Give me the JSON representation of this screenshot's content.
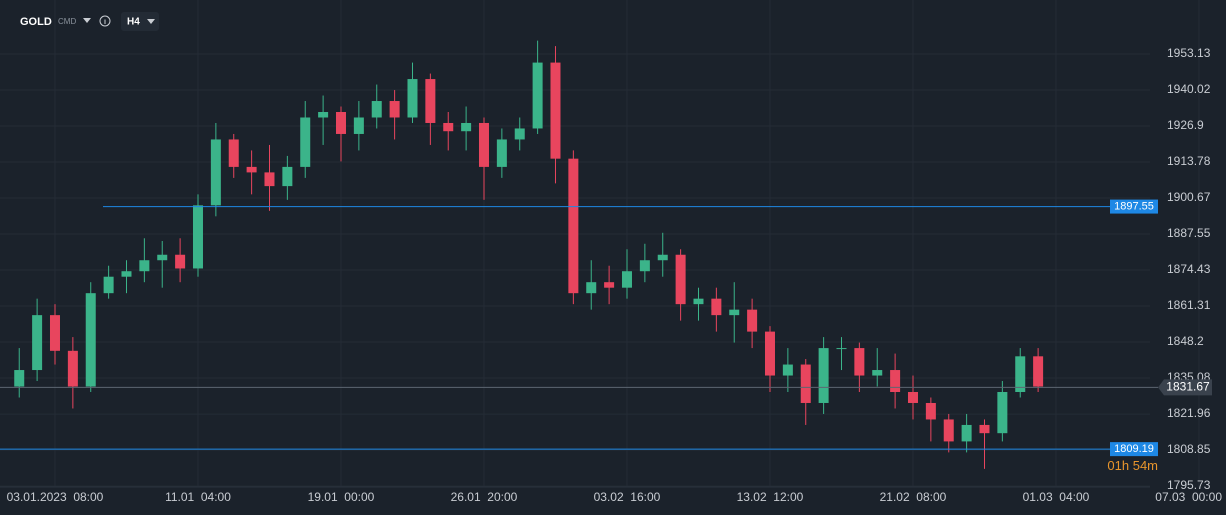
{
  "chart_data": {
    "type": "candlestick",
    "symbol": "GOLD",
    "market": "CMD",
    "timeframe": "H4",
    "categories": [
      null,
      null,
      "03.01.2023  08:00",
      null,
      null,
      null,
      null,
      null,
      null,
      null,
      "11.01  04:00",
      null,
      null,
      null,
      null,
      null,
      null,
      null,
      "19.01  00:00",
      null,
      null,
      null,
      null,
      null,
      null,
      null,
      "26.01  20:00",
      null,
      null,
      null,
      null,
      null,
      null,
      null,
      "03.02  16:00",
      null,
      null,
      null,
      null,
      null,
      null,
      null,
      "13.02  12:00",
      null,
      null,
      null,
      null,
      null,
      null,
      null,
      "21.02  08:00",
      null,
      null,
      null,
      null,
      null,
      null,
      null,
      "01.03  04:00",
      null,
      null,
      null,
      null,
      null,
      null,
      null,
      "07.03  00:00"
    ],
    "open": [
      1832,
      1838,
      1858,
      1845,
      1832,
      1866,
      1872,
      1874,
      1878,
      1880,
      1875,
      1898,
      1922,
      1912,
      1910,
      1905,
      1912,
      1930,
      1932,
      1924,
      1930,
      1936,
      1930,
      1944,
      1928,
      1925,
      1928,
      1912,
      1922,
      1926,
      1950,
      1915,
      1866,
      1870,
      1868,
      1874,
      1878,
      1880,
      1862,
      1864,
      1858,
      1860,
      1852,
      1836,
      1840,
      1826,
      1846,
      1846,
      1836,
      1838,
      1830,
      1826,
      1820,
      1812,
      1818,
      1815,
      1830,
      1843,
      null,
      null,
      null,
      null,
      null,
      null,
      null,
      null,
      null
    ],
    "high": [
      1846,
      1864,
      1862,
      1850,
      1870,
      1876,
      1878,
      1886,
      1885,
      1886,
      1902,
      1928,
      1924,
      1918,
      1920,
      1916,
      1936,
      1938,
      1934,
      1936,
      1942,
      1940,
      1950,
      1946,
      1932,
      1934,
      1930,
      1926,
      1930,
      1958,
      1956,
      1918,
      1878,
      1876,
      1882,
      1884,
      1888,
      1882,
      1868,
      1868,
      1870,
      1864,
      1854,
      1846,
      1842,
      1850,
      1850,
      1848,
      1846,
      1844,
      1836,
      1828,
      1822,
      1822,
      1820,
      1834,
      1846,
      1846,
      null,
      null,
      null,
      null,
      null,
      null,
      null,
      null,
      null
    ],
    "low": [
      1828,
      1834,
      1840,
      1824,
      1830,
      1864,
      1866,
      1870,
      1868,
      1870,
      1872,
      1894,
      1908,
      1902,
      1896,
      1900,
      1908,
      1920,
      1914,
      1918,
      1926,
      1922,
      1928,
      1920,
      1918,
      1918,
      1900,
      1908,
      1918,
      1924,
      1906,
      1862,
      1860,
      1862,
      1864,
      1870,
      1872,
      1856,
      1856,
      1852,
      1848,
      1846,
      1830,
      1830,
      1818,
      1822,
      1838,
      1830,
      1832,
      1824,
      1820,
      1812,
      1808,
      1808,
      1802,
      1812,
      1828,
      1830,
      null,
      null,
      null,
      null,
      null,
      null,
      null,
      null,
      null
    ],
    "close": [
      1838,
      1858,
      1845,
      1832,
      1866,
      1872,
      1874,
      1878,
      1880,
      1875,
      1898,
      1922,
      1912,
      1910,
      1905,
      1912,
      1930,
      1932,
      1924,
      1930,
      1936,
      1930,
      1944,
      1928,
      1925,
      1928,
      1912,
      1922,
      1926,
      1950,
      1915,
      1866,
      1870,
      1868,
      1874,
      1878,
      1880,
      1862,
      1864,
      1858,
      1860,
      1852,
      1836,
      1840,
      1826,
      1846,
      1846,
      1836,
      1838,
      1830,
      1826,
      1820,
      1812,
      1818,
      1815,
      1830,
      1843,
      1832,
      null,
      null,
      null,
      null,
      null,
      null,
      null,
      null,
      null
    ],
    "up_color": "#3bb48a",
    "down_color": "#e8455e",
    "ylim": [
      1794.3,
      1972.8
    ],
    "yticks": [
      1795.73,
      1808.85,
      1821.96,
      1835.08,
      1848.2,
      1861.31,
      1874.43,
      1887.55,
      1900.67,
      1913.78,
      1926.9,
      1940.02,
      1953.13
    ],
    "grid": true,
    "price_lines": [
      {
        "value": 1897.55,
        "color": "#1e88e5"
      },
      {
        "value": 1809.19,
        "color": "#1e88e5"
      }
    ],
    "current_price": 1831.67,
    "countdown": "01h 54m"
  }
}
